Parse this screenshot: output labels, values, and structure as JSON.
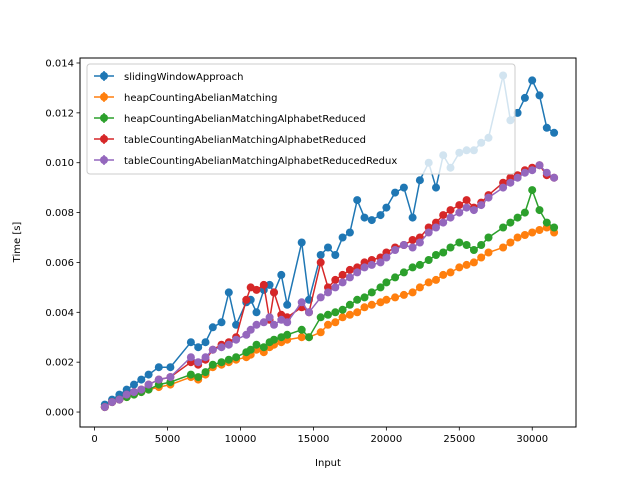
{
  "chart_data": {
    "type": "line",
    "title": "",
    "xlabel": "Input",
    "ylabel": "Time [s]",
    "xlim": [
      -1000,
      33000
    ],
    "ylim": [
      -0.0006,
      0.0142
    ],
    "xticks": [
      0,
      5000,
      10000,
      15000,
      20000,
      25000,
      30000
    ],
    "xtick_labels": [
      "0",
      "5000",
      "10000",
      "15000",
      "20000",
      "25000",
      "30000"
    ],
    "yticks": [
      0.0,
      0.002,
      0.004,
      0.006,
      0.008,
      0.01,
      0.012,
      0.014
    ],
    "ytick_labels": [
      "0.000",
      "0.002",
      "0.004",
      "0.006",
      "0.008",
      "0.010",
      "0.012",
      "0.014"
    ],
    "grid": false,
    "legend_position": "top-left",
    "x": [
      700,
      1200,
      1700,
      2200,
      2700,
      3200,
      3700,
      4400,
      5200,
      6600,
      7100,
      7600,
      8100,
      8700,
      9200,
      9700,
      10400,
      10700,
      11100,
      11600,
      12000,
      12300,
      12800,
      13200,
      14200,
      14700,
      15500,
      16000,
      16500,
      17000,
      17500,
      18000,
      18500,
      19000,
      19600,
      20000,
      20600,
      21200,
      21800,
      22300,
      22900,
      23400,
      23900,
      24400,
      25000,
      25500,
      26000,
      26500,
      27000,
      28000,
      28500,
      29000,
      29500,
      30000,
      30500,
      31000,
      31500
    ],
    "series": [
      {
        "name": "slidingWindowApproach",
        "color": "#1f77b4",
        "values": [
          0.0003,
          0.0005,
          0.0007,
          0.0009,
          0.0011,
          0.0013,
          0.0015,
          0.0018,
          0.0018,
          0.0028,
          0.0026,
          0.0028,
          0.0034,
          0.0036,
          0.0048,
          0.0035,
          0.0044,
          0.0045,
          0.004,
          0.0049,
          0.0051,
          0.0048,
          0.0055,
          0.0043,
          0.0068,
          0.0045,
          0.0063,
          0.0066,
          0.0063,
          0.007,
          0.0072,
          0.0085,
          0.0078,
          0.0077,
          0.0079,
          0.0082,
          0.0088,
          0.009,
          0.0078,
          0.0093,
          0.01,
          0.009,
          0.0103,
          0.0098,
          0.0104,
          0.0105,
          0.0105,
          0.0108,
          0.011,
          0.0135,
          0.0117,
          0.012,
          0.0126,
          0.0133,
          0.0127,
          0.0114,
          0.0112
        ]
      },
      {
        "name": "heapCountingAbelianMatching",
        "color": "#ff7f0e",
        "values": [
          0.0002,
          0.0004,
          0.0005,
          0.0006,
          0.0007,
          0.0008,
          0.0009,
          0.001,
          0.0011,
          0.0014,
          0.0013,
          0.0015,
          0.0018,
          0.0019,
          0.002,
          0.0021,
          0.0022,
          0.0023,
          0.0025,
          0.0024,
          0.0026,
          0.0027,
          0.0028,
          0.0029,
          0.003,
          0.003,
          0.0032,
          0.0035,
          0.0036,
          0.0038,
          0.0039,
          0.004,
          0.0042,
          0.0043,
          0.0044,
          0.0045,
          0.0046,
          0.0047,
          0.0048,
          0.005,
          0.0052,
          0.0053,
          0.0055,
          0.0056,
          0.0058,
          0.0059,
          0.006,
          0.0062,
          0.0064,
          0.0066,
          0.0068,
          0.007,
          0.0071,
          0.0072,
          0.0073,
          0.0074,
          0.0072
        ]
      },
      {
        "name": "heapCountingAbelianMatchingAlphabetReduced",
        "color": "#2ca02c",
        "values": [
          0.0002,
          0.0004,
          0.0005,
          0.0006,
          0.0007,
          0.0008,
          0.0009,
          0.0011,
          0.0012,
          0.0015,
          0.0014,
          0.0016,
          0.0019,
          0.002,
          0.0021,
          0.0022,
          0.0024,
          0.0025,
          0.0027,
          0.0026,
          0.0028,
          0.0029,
          0.003,
          0.0031,
          0.0033,
          0.003,
          0.0038,
          0.0039,
          0.004,
          0.0041,
          0.0043,
          0.0045,
          0.0046,
          0.0048,
          0.005,
          0.0052,
          0.0054,
          0.0056,
          0.0058,
          0.0059,
          0.0061,
          0.0063,
          0.0064,
          0.0066,
          0.0068,
          0.0067,
          0.0065,
          0.0067,
          0.007,
          0.0074,
          0.0076,
          0.0078,
          0.008,
          0.0089,
          0.0081,
          0.0076,
          0.0074
        ]
      },
      {
        "name": "tableCountingAbelianMatchingAlphabetReduced",
        "color": "#d62728",
        "values": [
          0.0002,
          0.0004,
          0.0005,
          0.0007,
          0.0008,
          0.0009,
          0.0011,
          0.0013,
          0.0014,
          0.002,
          0.0019,
          0.0021,
          0.0025,
          0.0027,
          0.0028,
          0.003,
          0.0045,
          0.005,
          0.0049,
          0.0051,
          0.0037,
          0.0048,
          0.0039,
          0.0038,
          0.0042,
          0.004,
          0.006,
          0.005,
          0.0053,
          0.0055,
          0.0057,
          0.0058,
          0.006,
          0.0061,
          0.0062,
          0.0064,
          0.0066,
          0.0067,
          0.0069,
          0.007,
          0.0074,
          0.0076,
          0.0079,
          0.0081,
          0.0083,
          0.0085,
          0.0082,
          0.0084,
          0.0087,
          0.0092,
          0.0094,
          0.0095,
          0.0097,
          0.0098,
          0.0099,
          0.0095,
          0.0094
        ]
      },
      {
        "name": "tableCountingAbelianMatchingAlphabetReducedRedux",
        "color": "#9467bd",
        "values": [
          0.0002,
          0.0004,
          0.0005,
          0.0007,
          0.0008,
          0.0009,
          0.0011,
          0.0013,
          0.0014,
          0.0022,
          0.002,
          0.0022,
          0.0025,
          0.0026,
          0.0027,
          0.0029,
          0.0031,
          0.0033,
          0.0035,
          0.0036,
          0.0038,
          0.0035,
          0.0037,
          0.0036,
          0.0044,
          0.004,
          0.0046,
          0.0048,
          0.005,
          0.0052,
          0.0054,
          0.0056,
          0.0058,
          0.0059,
          0.006,
          0.0062,
          0.0065,
          0.0067,
          0.0066,
          0.0068,
          0.0072,
          0.0074,
          0.0076,
          0.0078,
          0.008,
          0.0082,
          0.0081,
          0.0083,
          0.0086,
          0.009,
          0.0092,
          0.0094,
          0.0096,
          0.0097,
          0.0099,
          0.0096,
          0.0094
        ]
      }
    ]
  }
}
